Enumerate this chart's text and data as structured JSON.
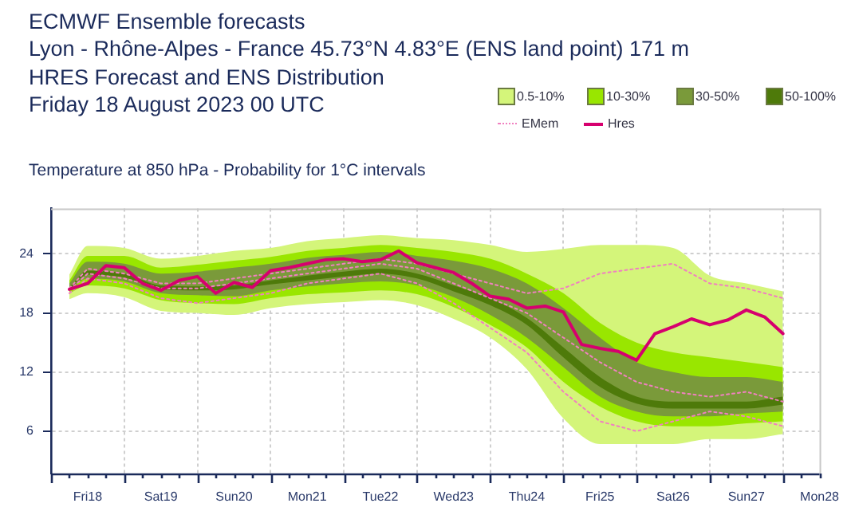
{
  "chart_data": {
    "type": "line",
    "title": "ECMWF Ensemble forecasts",
    "subtitle": "Lyon - Rhône-Alpes - France 45.73°N 4.83°E (ENS land point) 171 m",
    "annotations": [
      "HRES Forecast and ENS Distribution",
      "Friday 18 August 2023 00 UTC",
      "Temperature at 850 hPa - Probability for 1°C intervals"
    ],
    "xlim": [
      "2023-08-18T00:00",
      "2023-08-28T12:00"
    ],
    "ylim": [
      1.7,
      28.6
    ],
    "yticks": [
      6,
      12,
      18,
      24
    ],
    "xticks": [
      {
        "value": "2023-08-18T00:00",
        "label": null
      },
      {
        "value": "2023-08-18T06:00",
        "label": null
      },
      {
        "value": "2023-08-18T12:00",
        "label": "Fri18"
      },
      {
        "value": "2023-08-18T18:00",
        "label": null
      },
      {
        "value": "2023-08-19T00:00",
        "label": null
      },
      {
        "value": "2023-08-19T06:00",
        "label": null
      },
      {
        "value": "2023-08-19T12:00",
        "label": "Sat19"
      },
      {
        "value": "2023-08-19T18:00",
        "label": null
      },
      {
        "value": "2023-08-20T00:00",
        "label": null
      },
      {
        "value": "2023-08-20T06:00",
        "label": null
      },
      {
        "value": "2023-08-20T12:00",
        "label": "Sun20"
      },
      {
        "value": "2023-08-20T18:00",
        "label": null
      },
      {
        "value": "2023-08-21T00:00",
        "label": null
      },
      {
        "value": "2023-08-21T06:00",
        "label": null
      },
      {
        "value": "2023-08-21T12:00",
        "label": "Mon21"
      },
      {
        "value": "2023-08-21T18:00",
        "label": null
      },
      {
        "value": "2023-08-22T00:00",
        "label": null
      },
      {
        "value": "2023-08-22T06:00",
        "label": null
      },
      {
        "value": "2023-08-22T12:00",
        "label": "Tue22"
      },
      {
        "value": "2023-08-22T18:00",
        "label": null
      },
      {
        "value": "2023-08-23T00:00",
        "label": null
      },
      {
        "value": "2023-08-23T06:00",
        "label": null
      },
      {
        "value": "2023-08-23T12:00",
        "label": "Wed23"
      },
      {
        "value": "2023-08-23T18:00",
        "label": null
      },
      {
        "value": "2023-08-24T00:00",
        "label": null
      },
      {
        "value": "2023-08-24T06:00",
        "label": null
      },
      {
        "value": "2023-08-24T12:00",
        "label": "Thu24"
      },
      {
        "value": "2023-08-24T18:00",
        "label": null
      },
      {
        "value": "2023-08-25T00:00",
        "label": null
      },
      {
        "value": "2023-08-25T06:00",
        "label": null
      },
      {
        "value": "2023-08-25T12:00",
        "label": "Fri25"
      },
      {
        "value": "2023-08-25T18:00",
        "label": null
      },
      {
        "value": "2023-08-26T00:00",
        "label": null
      },
      {
        "value": "2023-08-26T06:00",
        "label": null
      },
      {
        "value": "2023-08-26T12:00",
        "label": "Sat26"
      },
      {
        "value": "2023-08-26T18:00",
        "label": null
      },
      {
        "value": "2023-08-27T00:00",
        "label": null
      },
      {
        "value": "2023-08-27T06:00",
        "label": null
      },
      {
        "value": "2023-08-27T12:00",
        "label": "Sun27"
      },
      {
        "value": "2023-08-27T18:00",
        "label": null
      },
      {
        "value": "2023-08-28T00:00",
        "label": null
      },
      {
        "value": "2023-08-28T06:00",
        "label": null
      },
      {
        "value": "2023-08-28T12:00",
        "label": "Mon28"
      }
    ],
    "grid": true,
    "legend": "top right",
    "marker": "none",
    "x": [
      "2023-08-18T06:00",
      "2023-08-18T12:00",
      "2023-08-19T00:00",
      "2023-08-19T12:00",
      "2023-08-20T00:00",
      "2023-08-20T12:00",
      "2023-08-21T00:00",
      "2023-08-21T12:00",
      "2023-08-22T00:00",
      "2023-08-22T12:00",
      "2023-08-23T00:00",
      "2023-08-23T12:00",
      "2023-08-24T00:00",
      "2023-08-24T12:00",
      "2023-08-25T00:00",
      "2023-08-25T12:00",
      "2023-08-26T00:00",
      "2023-08-26T12:00",
      "2023-08-27T00:00",
      "2023-08-27T12:00",
      "2023-08-28T00:00"
    ],
    "series": [
      {
        "name": "0.5-10%",
        "type": "area",
        "color": "#d4f57a",
        "values": [
          null,
          null,
          null,
          null,
          null,
          null,
          null,
          null,
          null,
          null,
          null,
          null,
          null,
          null,
          null,
          null,
          null,
          null,
          null,
          null,
          null
        ],
        "upper": [
          21.9,
          24.8,
          24.6,
          23.5,
          23.8,
          24.3,
          24.6,
          25.3,
          25.6,
          25.9,
          25.6,
          25.4,
          24.9,
          24.2,
          24.5,
          24.9,
          24.9,
          24.6,
          21.8,
          21.0,
          20.2
        ],
        "lower": [
          19.4,
          20.0,
          19.6,
          18.2,
          18.0,
          17.8,
          18.5,
          18.9,
          19.1,
          19.3,
          18.8,
          17.4,
          15.5,
          12.3,
          7.3,
          4.7,
          4.7,
          4.7,
          5.2,
          5.2,
          5.7
        ]
      },
      {
        "name": "10-30%",
        "type": "area",
        "color": "#99e600",
        "values": [
          null,
          null,
          null,
          null,
          null,
          null,
          null,
          null,
          null,
          null,
          null,
          null,
          null,
          null,
          null,
          null,
          null,
          null,
          null,
          null,
          null
        ],
        "upper": [
          21.3,
          23.8,
          23.8,
          22.6,
          22.9,
          23.3,
          23.7,
          24.3,
          24.6,
          24.9,
          24.6,
          24.2,
          23.5,
          22.0,
          20.0,
          17.0,
          15.0,
          14.0,
          13.5,
          13.0,
          12.5
        ],
        "lower": [
          20.0,
          20.8,
          20.5,
          19.3,
          19.0,
          18.9,
          19.5,
          19.9,
          20.1,
          20.3,
          19.9,
          18.6,
          16.8,
          14.5,
          11.0,
          8.5,
          7.0,
          6.5,
          6.5,
          6.8,
          7.0
        ]
      },
      {
        "name": "30-50%",
        "type": "area",
        "color": "#7a9a3a",
        "values": [
          null,
          null,
          null,
          null,
          null,
          null,
          null,
          null,
          null,
          null,
          null,
          null,
          null,
          null,
          null,
          null,
          null,
          null,
          null,
          null,
          null
        ],
        "upper": [
          21.0,
          23.2,
          23.0,
          22.0,
          22.2,
          22.6,
          23.0,
          23.6,
          23.9,
          24.2,
          23.8,
          23.3,
          22.5,
          21.0,
          18.5,
          15.5,
          13.0,
          12.0,
          11.5,
          11.5,
          11.0
        ],
        "lower": [
          20.3,
          21.5,
          21.2,
          20.0,
          19.8,
          19.7,
          20.3,
          20.7,
          21.0,
          21.2,
          20.8,
          19.6,
          17.8,
          15.5,
          12.5,
          9.5,
          8.0,
          7.5,
          7.5,
          7.8,
          8.0
        ]
      },
      {
        "name": "50-100%",
        "type": "area",
        "color": "#4e7a0a",
        "values": [
          null,
          null,
          null,
          null,
          null,
          null,
          null,
          null,
          null,
          null,
          null,
          null,
          null,
          null,
          null,
          null,
          null,
          null,
          null,
          null,
          null
        ],
        "upper": [
          20.6,
          22.3,
          22.0,
          20.8,
          20.7,
          20.8,
          21.3,
          21.8,
          22.2,
          22.5,
          22.0,
          20.8,
          19.5,
          17.5,
          14.5,
          11.5,
          9.5,
          9.0,
          9.0,
          9.0,
          9.5
        ],
        "lower": [
          20.4,
          21.9,
          21.6,
          20.4,
          20.3,
          20.4,
          20.9,
          21.3,
          21.7,
          22.0,
          21.5,
          20.2,
          18.8,
          16.8,
          13.5,
          10.5,
          8.8,
          8.3,
          8.3,
          8.3,
          8.7
        ]
      },
      {
        "name": "EMem",
        "line_style": "dotted",
        "color": "#f080c0",
        "values": [
          20.5,
          22.5,
          22.0,
          21.0,
          21.0,
          21.5,
          22.0,
          22.5,
          23.0,
          23.5,
          23.0,
          22.0,
          21.0,
          20.0,
          20.5,
          22.0,
          22.5,
          23.0,
          21.0,
          20.5,
          19.5
        ]
      },
      {
        "line_style": "dotted",
        "color": "#f080c0",
        "values": [
          20.3,
          22.0,
          21.5,
          20.5,
          20.5,
          21.0,
          21.5,
          22.0,
          22.5,
          23.0,
          22.5,
          21.0,
          19.5,
          18.0,
          15.5,
          13.0,
          11.0,
          10.0,
          9.5,
          10.0,
          9.0
        ]
      },
      {
        "line_style": "dotted",
        "color": "#f080c0",
        "values": [
          20.0,
          21.5,
          21.0,
          19.5,
          19.0,
          19.5,
          20.0,
          21.0,
          21.5,
          22.0,
          21.0,
          19.0,
          16.5,
          14.0,
          10.0,
          7.0,
          6.0,
          7.0,
          8.0,
          7.5,
          6.5
        ]
      },
      {
        "name": "Hres",
        "line_style": "solid",
        "color": "#d6006e",
        "x": [
          "2023-08-18T06:00",
          "2023-08-18T12:00",
          "2023-08-18T18:00",
          "2023-08-19T00:00",
          "2023-08-19T06:00",
          "2023-08-19T12:00",
          "2023-08-19T18:00",
          "2023-08-20T00:00",
          "2023-08-20T06:00",
          "2023-08-20T12:00",
          "2023-08-20T18:00",
          "2023-08-21T00:00",
          "2023-08-21T06:00",
          "2023-08-21T12:00",
          "2023-08-21T18:00",
          "2023-08-22T00:00",
          "2023-08-22T06:00",
          "2023-08-22T12:00",
          "2023-08-22T18:00",
          "2023-08-23T00:00",
          "2023-08-23T06:00",
          "2023-08-23T12:00",
          "2023-08-23T18:00",
          "2023-08-24T00:00",
          "2023-08-24T06:00",
          "2023-08-24T12:00",
          "2023-08-24T18:00",
          "2023-08-25T00:00",
          "2023-08-25T06:00",
          "2023-08-25T12:00",
          "2023-08-25T18:00",
          "2023-08-26T00:00",
          "2023-08-26T06:00",
          "2023-08-26T12:00",
          "2023-08-26T18:00",
          "2023-08-27T00:00",
          "2023-08-27T06:00",
          "2023-08-27T12:00",
          "2023-08-27T18:00",
          "2023-08-28T00:00"
        ],
        "values": [
          20.4,
          21.0,
          22.8,
          22.6,
          21.0,
          20.3,
          21.3,
          21.7,
          20.0,
          21.1,
          20.6,
          22.3,
          22.6,
          23.0,
          23.4,
          23.5,
          23.2,
          23.4,
          24.3,
          23.1,
          22.6,
          22.1,
          21.0,
          19.7,
          19.4,
          18.5,
          18.7,
          18.1,
          14.8,
          14.4,
          14.1,
          13.2,
          15.9,
          16.6,
          17.4,
          16.8,
          17.3,
          18.3,
          17.6,
          15.9
        ]
      }
    ]
  }
}
